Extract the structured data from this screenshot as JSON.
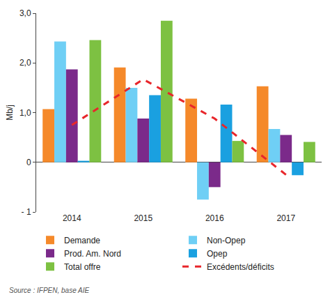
{
  "chart_data": {
    "type": "bar",
    "y_label": "Mb/j",
    "categories": [
      "2014",
      "2015",
      "2016",
      "2017"
    ],
    "series": [
      {
        "name": "Demande",
        "type": "bar",
        "color": "#f5892a",
        "values": [
          1.07,
          1.91,
          1.28,
          1.53
        ]
      },
      {
        "name": "Non-Opep",
        "type": "bar",
        "color": "#6fcff5",
        "values": [
          2.43,
          1.5,
          -0.75,
          0.67
        ]
      },
      {
        "name": "Prod. Am. Nord",
        "type": "bar",
        "color": "#7b2a8a",
        "values": [
          1.87,
          0.88,
          -0.5,
          0.55
        ]
      },
      {
        "name": "Opep",
        "type": "bar",
        "color": "#1aa0e0",
        "values": [
          0.03,
          1.35,
          1.16,
          -0.26
        ]
      },
      {
        "name": "Total offre",
        "type": "bar",
        "color": "#7dc142",
        "values": [
          2.46,
          2.85,
          0.43,
          0.41
        ]
      },
      {
        "name": "Excédents/déficits",
        "type": "line",
        "line_style": "dash",
        "color": "#e8262b",
        "values": [
          0.75,
          1.67,
          0.88,
          -0.25
        ]
      }
    ],
    "ylim": [
      -1,
      3
    ],
    "yticks": [
      {
        "value": -1,
        "label": "- 1"
      },
      0,
      {
        "value": 1,
        "label": "1,0"
      },
      {
        "value": 2,
        "label": "2,0"
      },
      {
        "value": 3,
        "label": "3,0"
      }
    ],
    "grid": false,
    "legend": "bottom",
    "annotations": [
      "Source : IFPEN, base AIE"
    ]
  }
}
